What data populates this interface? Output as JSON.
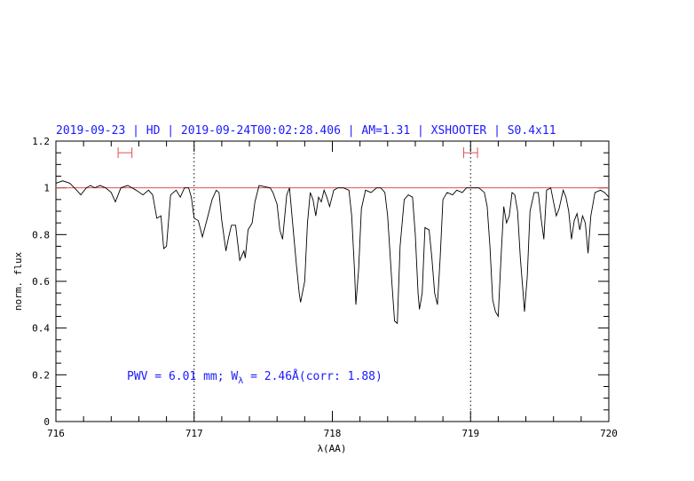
{
  "chart_data": {
    "type": "line",
    "title": "2019-09-23 | HD | 2019-09-24T00:02:28.406 | AM=1.31 | XSHOOTER | S0.4x11",
    "xlabel": "λ(AA)",
    "ylabel": "norm. flux",
    "annotation": [
      "PWV = 6.01 mm; W",
      "λ",
      " = 2.46Å(corr: 1.88)"
    ],
    "color": "#000000",
    "x": [
      716.0,
      716.05,
      716.1,
      716.15,
      716.18,
      716.22,
      716.25,
      716.28,
      716.32,
      716.36,
      716.4,
      716.43,
      716.47,
      716.52,
      716.58,
      716.63,
      716.67,
      716.7,
      716.73,
      716.76,
      716.78,
      716.8,
      716.83,
      716.87,
      716.9,
      716.93,
      716.96,
      716.98,
      717.0,
      717.03,
      717.06,
      717.1,
      717.13,
      717.16,
      717.18,
      717.2,
      717.23,
      717.25,
      717.27,
      717.3,
      717.33,
      717.36,
      717.37,
      717.39,
      717.42,
      717.44,
      717.47,
      717.55,
      717.57,
      717.6,
      717.62,
      717.64,
      717.67,
      717.69,
      717.72,
      717.74,
      717.76,
      717.77,
      717.8,
      717.82,
      717.84,
      717.86,
      717.88,
      717.9,
      717.92,
      717.94,
      717.96,
      717.98,
      718.01,
      718.04,
      718.08,
      718.12,
      718.14,
      718.16,
      718.17,
      718.19,
      718.21,
      718.24,
      718.28,
      718.32,
      718.35,
      718.38,
      718.4,
      718.43,
      718.45,
      718.47,
      718.49,
      718.52,
      718.55,
      718.58,
      718.6,
      718.62,
      718.63,
      718.65,
      718.67,
      718.7,
      718.72,
      718.74,
      718.76,
      718.78,
      718.8,
      718.83,
      718.87,
      718.9,
      718.94,
      718.97,
      719.02,
      719.06,
      719.1,
      719.12,
      719.14,
      719.16,
      719.18,
      719.2,
      719.22,
      719.24,
      719.26,
      719.28,
      719.3,
      719.32,
      719.34,
      719.36,
      719.38,
      719.39,
      719.41,
      719.43,
      719.46,
      719.49,
      719.51,
      719.53,
      719.55,
      719.58,
      719.6,
      719.62,
      719.64,
      719.67,
      719.69,
      719.71,
      719.73,
      719.75,
      719.77,
      719.79,
      719.81,
      719.83,
      719.85,
      719.87,
      719.9,
      719.94,
      719.97,
      720.0
    ],
    "values": [
      1.02,
      1.03,
      1.02,
      0.99,
      0.97,
      1.0,
      1.01,
      1.0,
      1.01,
      1.0,
      0.98,
      0.94,
      1.0,
      1.01,
      0.99,
      0.97,
      0.99,
      0.97,
      0.87,
      0.88,
      0.74,
      0.75,
      0.97,
      0.99,
      0.96,
      1.0,
      1.0,
      0.96,
      0.87,
      0.86,
      0.79,
      0.88,
      0.95,
      0.99,
      0.98,
      0.86,
      0.73,
      0.79,
      0.84,
      0.84,
      0.69,
      0.73,
      0.7,
      0.82,
      0.85,
      0.94,
      1.01,
      1.0,
      0.98,
      0.93,
      0.82,
      0.78,
      0.97,
      1.0,
      0.8,
      0.67,
      0.55,
      0.51,
      0.6,
      0.85,
      0.98,
      0.95,
      0.88,
      0.96,
      0.94,
      0.99,
      0.96,
      0.92,
      0.99,
      1.0,
      1.0,
      0.99,
      0.88,
      0.65,
      0.5,
      0.65,
      0.91,
      0.99,
      0.98,
      1.0,
      1.0,
      0.98,
      0.88,
      0.6,
      0.43,
      0.42,
      0.75,
      0.95,
      0.97,
      0.96,
      0.8,
      0.55,
      0.48,
      0.55,
      0.83,
      0.82,
      0.7,
      0.55,
      0.5,
      0.7,
      0.95,
      0.98,
      0.97,
      0.99,
      0.98,
      1.0,
      1.0,
      1.0,
      0.98,
      0.92,
      0.75,
      0.52,
      0.47,
      0.45,
      0.7,
      0.92,
      0.85,
      0.88,
      0.98,
      0.97,
      0.9,
      0.7,
      0.55,
      0.47,
      0.62,
      0.9,
      0.98,
      0.98,
      0.87,
      0.78,
      0.99,
      1.0,
      0.94,
      0.88,
      0.91,
      0.99,
      0.96,
      0.9,
      0.78,
      0.86,
      0.89,
      0.82,
      0.88,
      0.85,
      0.72,
      0.88,
      0.98,
      0.99,
      0.98,
      0.96
    ],
    "xlim": [
      716,
      720
    ],
    "xticks": [
      716,
      717,
      718,
      719,
      720
    ],
    "ylim": [
      0,
      1.2
    ],
    "yticks": [
      0,
      0.2,
      0.4,
      0.6,
      0.8,
      1,
      1.2
    ],
    "hline": 1,
    "hline_color": "#e05050",
    "vlines": [
      717,
      719
    ],
    "windows": [
      [
        716.45,
        716.55
      ],
      [
        718.95,
        719.05
      ]
    ],
    "window_y": 1.15,
    "window_color": "#e05050"
  }
}
